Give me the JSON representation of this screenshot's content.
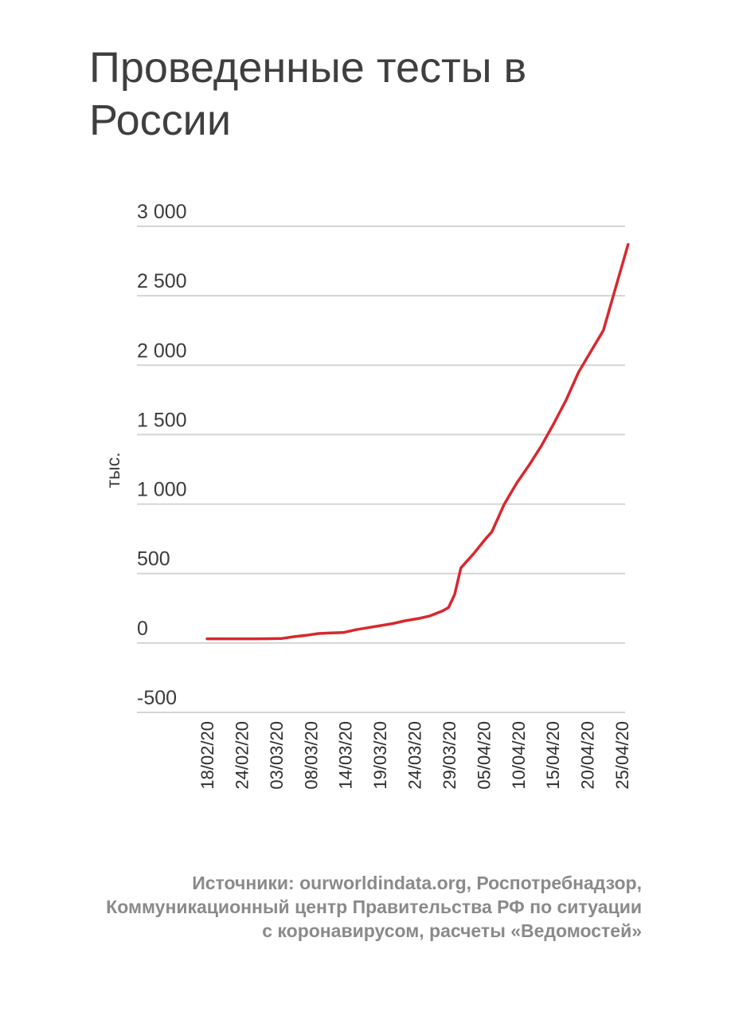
{
  "title": "Проведенные тесты в России",
  "source": "Источники: ourworldindata.org, Роспотребнадзор, Коммуникационный центр Правительства РФ по ситуации с коронавирусом, расчеты «Ведомостей»",
  "chart_data": {
    "type": "line",
    "title": "Проведенные тесты в России",
    "xlabel": "",
    "ylabel": "тыс.",
    "ylim": [
      -500,
      3000
    ],
    "yticks": [
      3000,
      2500,
      2000,
      1500,
      1000,
      500,
      0,
      -500
    ],
    "ytick_labels": [
      "3 000",
      "2 500",
      "2 000",
      "1 500",
      "1 000",
      "500",
      "0",
      "-500"
    ],
    "xticks": [
      "18/02/20",
      "24/02/20",
      "03/03/20",
      "08/03/20",
      "14/03/20",
      "19/03/20",
      "24/03/20",
      "29/03/20",
      "05/04/20",
      "10/04/20",
      "15/04/20",
      "20/04/20",
      "25/04/20"
    ],
    "grid": true,
    "line_color": "#d9272e",
    "grid_color": "#d4d4d4",
    "series": [
      {
        "x": [
          "2020-02-18",
          "2020-02-20",
          "2020-02-22",
          "2020-02-24",
          "2020-02-26",
          "2020-02-28",
          "2020-03-01",
          "2020-03-03",
          "2020-03-05",
          "2020-03-07",
          "2020-03-09",
          "2020-03-11",
          "2020-03-13",
          "2020-03-15",
          "2020-03-17",
          "2020-03-19",
          "2020-03-21",
          "2020-03-23",
          "2020-03-25",
          "2020-03-27",
          "2020-03-28",
          "2020-03-29",
          "2020-03-30",
          "2020-04-01",
          "2020-04-03",
          "2020-04-04",
          "2020-04-06",
          "2020-04-08",
          "2020-04-10",
          "2020-04-12",
          "2020-04-14",
          "2020-04-16",
          "2020-04-18",
          "2020-04-20",
          "2020-04-22",
          "2020-04-24",
          "2020-04-26"
        ],
        "y": [
          30,
          30,
          30,
          30,
          30,
          31,
          32,
          45,
          55,
          68,
          72,
          75,
          95,
          110,
          125,
          140,
          160,
          175,
          195,
          230,
          255,
          350,
          540,
          640,
          750,
          800,
          1000,
          1150,
          1280,
          1420,
          1580,
          1750,
          1950,
          2100,
          2250,
          2560,
          2870
        ]
      }
    ]
  }
}
